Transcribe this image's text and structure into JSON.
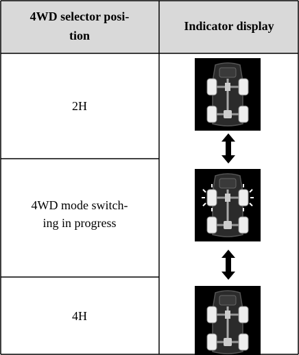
{
  "table": {
    "header": [
      [
        "4WD selector posi-",
        "tion"
      ],
      "Indicator display"
    ],
    "rows": [
      [
        "2H"
      ],
      [
        "4WD mode switch-",
        "ing in progress"
      ],
      [
        "4H"
      ]
    ]
  }
}
